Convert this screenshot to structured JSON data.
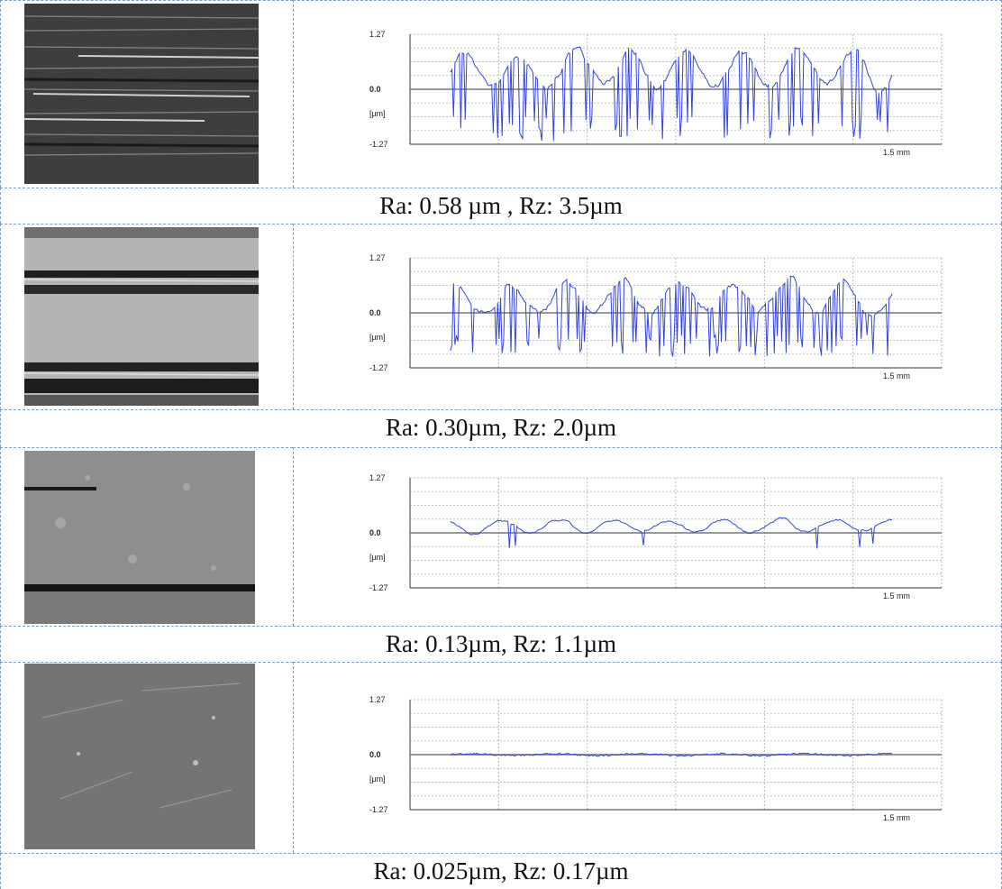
{
  "chart_data": [
    {
      "type": "line",
      "title": "",
      "xlabel": "",
      "ylabel": "[µm]",
      "y_tick_labels": [
        "1.27",
        "0.0",
        "-1.27"
      ],
      "x_tick_label": "1.5 mm",
      "ylim": [
        -1.27,
        1.27
      ],
      "xlim": [
        0,
        1.5
      ],
      "grid": true,
      "series_color": "#3344dd",
      "caption": "Ra: 0.58 µm , Rz: 3.5µm",
      "amplitude": 1.0
    },
    {
      "type": "line",
      "title": "",
      "xlabel": "",
      "ylabel": "[µm]",
      "y_tick_labels": [
        "1.27",
        "0.0",
        "-1.27"
      ],
      "x_tick_label": "1.5 mm",
      "ylim": [
        -1.27,
        1.27
      ],
      "xlim": [
        0,
        1.5
      ],
      "grid": true,
      "series_color": "#3344dd",
      "caption": "Ra: 0.30µm, Rz: 2.0µm",
      "amplitude": 0.85
    },
    {
      "type": "line",
      "title": "",
      "xlabel": "",
      "ylabel": "[µm]",
      "y_tick_labels": [
        "1.27",
        "0.0",
        "-1.27"
      ],
      "x_tick_label": "1.5 mm",
      "ylim": [
        -1.27,
        1.27
      ],
      "xlim": [
        0,
        1.5
      ],
      "grid": true,
      "series_color": "#3344dd",
      "caption": "Ra: 0.13µm, Rz: 1.1µm",
      "amplitude": 0.35
    },
    {
      "type": "line",
      "title": "",
      "xlabel": "",
      "ylabel": "[µm]",
      "y_tick_labels": [
        "1.27",
        "0.0",
        "-1.27"
      ],
      "x_tick_label": "1.5 mm",
      "ylim": [
        -1.27,
        1.27
      ],
      "xlim": [
        0,
        1.5
      ],
      "grid": true,
      "series_color": "#3344dd",
      "caption": "Ra: 0.025µm, Rz: 0.17µm",
      "amplitude": 0.04
    }
  ]
}
